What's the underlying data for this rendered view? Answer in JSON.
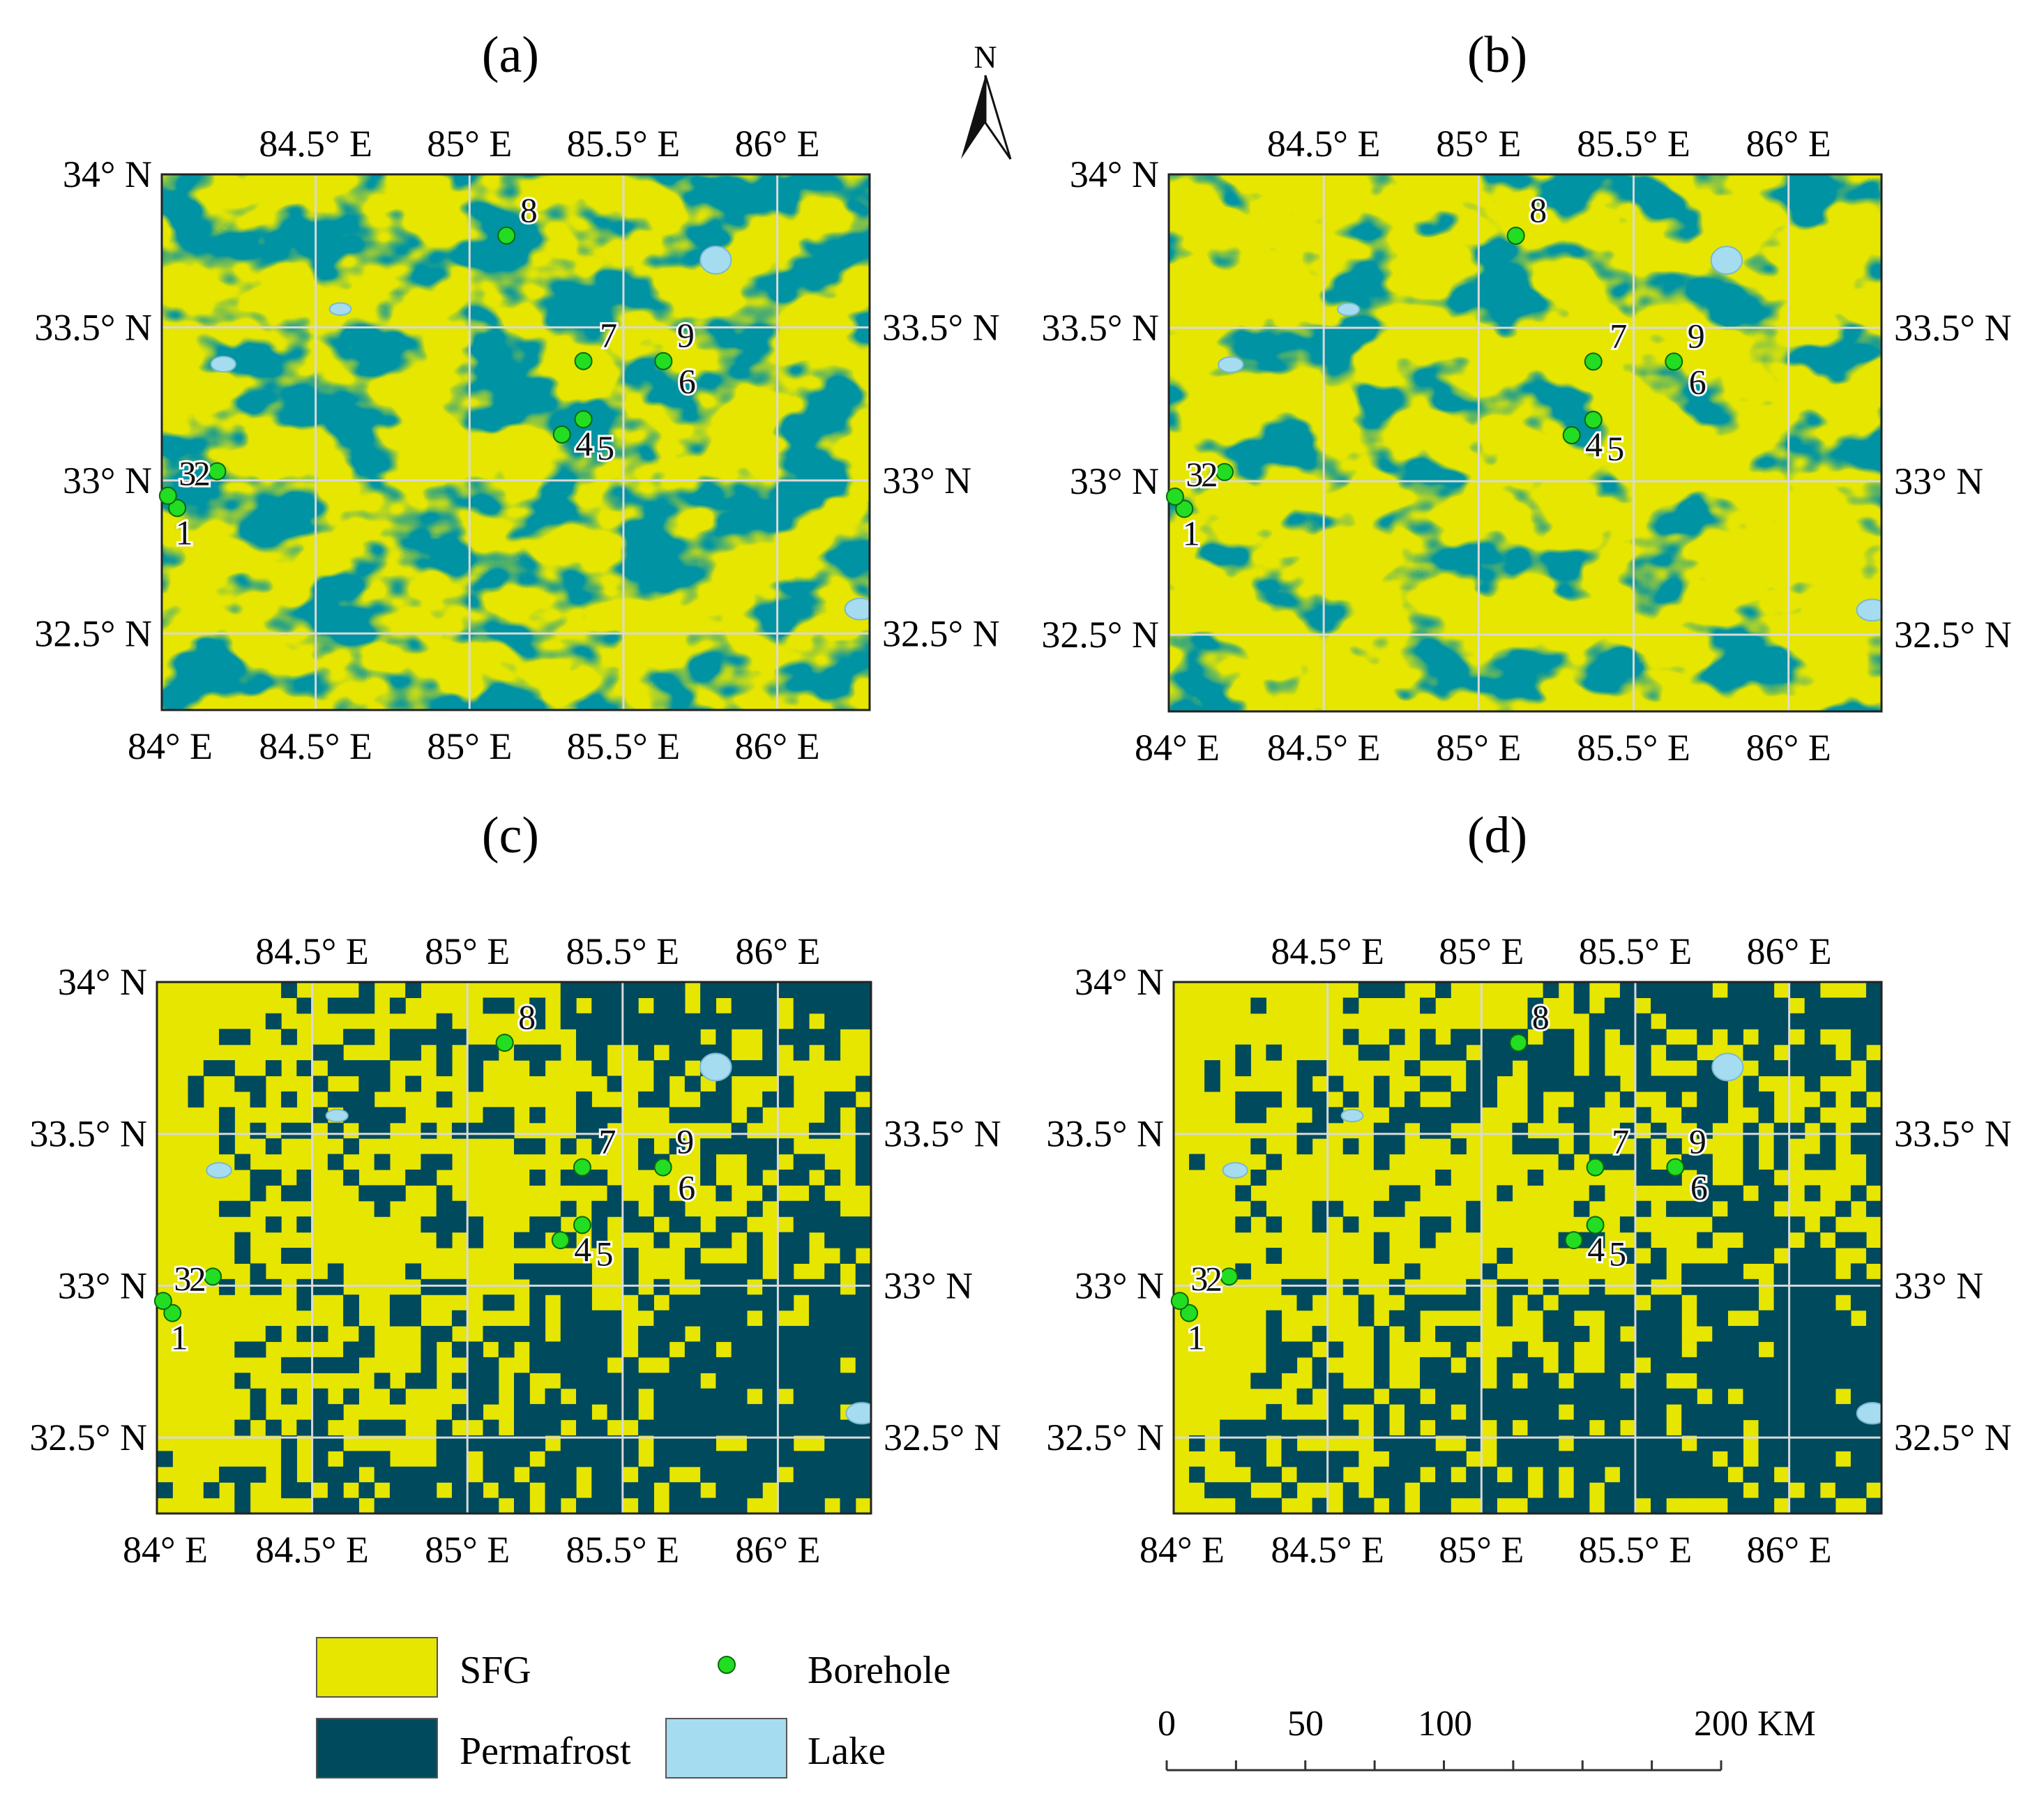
{
  "colors": {
    "sfg": "#e6e600",
    "permafrost": "#004a5e",
    "lake": "#a6dcf0",
    "borehole": "#22dd22",
    "grid": "#d9d9d9"
  },
  "north_arrow": {
    "label": "N"
  },
  "axes": {
    "lon_ticks": [
      84.5,
      85,
      85.5,
      86
    ],
    "lon_labels": [
      "84.5° E",
      "85° E",
      "85.5° E",
      "86° E"
    ],
    "lon_origin_label": "84° E",
    "lat_ticks": [
      34,
      33.5,
      33,
      32.5
    ],
    "lat_labels": [
      "34° N",
      "33.5° N",
      "33° N",
      "32.5° N"
    ],
    "lon_range": [
      84,
      86.3
    ],
    "lat_range": [
      32.25,
      34
    ]
  },
  "panels": [
    {
      "id": "a",
      "label": "(a)"
    },
    {
      "id": "b",
      "label": "(b)"
    },
    {
      "id": "c",
      "label": "(c)"
    },
    {
      "id": "d",
      "label": "(d)"
    }
  ],
  "boreholes": [
    {
      "id": "1",
      "lon": 84.05,
      "lat": 32.91
    },
    {
      "id": "2",
      "lon": 84.18,
      "lat": 33.03
    },
    {
      "id": "3",
      "lon": 84.02,
      "lat": 32.93
    },
    {
      "id": "4",
      "lon": 85.3,
      "lat": 33.15
    },
    {
      "id": "5",
      "lon": 85.37,
      "lat": 33.2
    },
    {
      "id": "6",
      "lon": 85.63,
      "lat": 33.39
    },
    {
      "id": "7",
      "lon": 85.37,
      "lat": 33.39
    },
    {
      "id": "8",
      "lon": 85.12,
      "lat": 33.8
    },
    {
      "id": "9",
      "lon": 85.63,
      "lat": 33.39
    }
  ],
  "legend": {
    "sfg": "SFG",
    "permafrost": "Permafrost",
    "borehole": "Borehole",
    "lake": "Lake"
  },
  "scale_bar": {
    "ticks": [
      "0",
      "50",
      "100",
      "200"
    ],
    "unit": "KM"
  }
}
